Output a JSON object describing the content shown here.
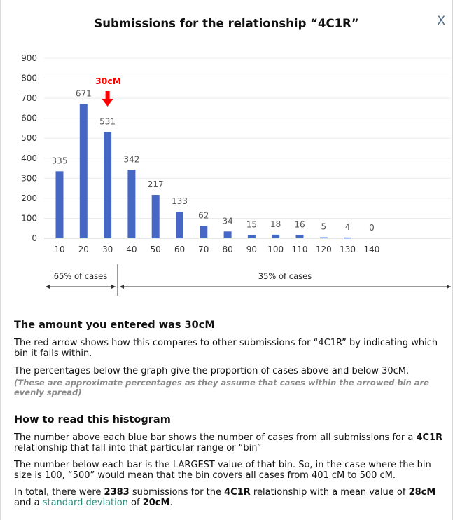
{
  "dialog": {
    "title": "Submissions for the relationship “4C1R”",
    "close_label": "X"
  },
  "chart_data": {
    "type": "bar",
    "categories": [
      "10",
      "20",
      "30",
      "40",
      "50",
      "60",
      "70",
      "80",
      "90",
      "100",
      "110",
      "120",
      "130",
      "140"
    ],
    "values": [
      335,
      671,
      531,
      342,
      217,
      133,
      62,
      34,
      15,
      18,
      16,
      5,
      4,
      0
    ],
    "yticks": [
      "0",
      "100",
      "200",
      "300",
      "400",
      "500",
      "600",
      "700",
      "800",
      "900"
    ],
    "ylim": [
      0,
      900
    ],
    "grid": true,
    "bar_color": "#4767c4",
    "marker": {
      "label": "30cM",
      "category": "30",
      "color": "#ff0000"
    },
    "split": {
      "left_label": "65% of cases",
      "right_label": "35% of cases"
    }
  },
  "entered": {
    "heading": "The amount you entered was 30cM",
    "p1": "The red arrow shows how this compares to other submissions for “4C1R” by indicating which bin it falls within.",
    "p2": "The percentages below the graph give the proportion of cases above and below 30cM.",
    "note": "(These are approximate percentages as they assume that cases within the arrowed bin are evenly spread)"
  },
  "howto": {
    "heading": "How to read this histogram",
    "p1_pre": "The number above each blue bar shows the number of cases from all submissions for a ",
    "p1_bold": "4C1R",
    "p1_post": " relationship that fall into that particular range or “bin”",
    "p2": "The number below each bar is the LARGEST value of that bin. So, in the case where the bin size is 100, “500” would mean that the bin covers all cases from 401 cM to 500 cM.",
    "p3_a": "In total, there were ",
    "p3_total": "2383",
    "p3_b": " submissions for the ",
    "p3_rel": "4C1R",
    "p3_c": " relationship with a mean value of ",
    "p3_mean": "28cM",
    "p3_d": " and a ",
    "p3_link": "standard deviation",
    "p3_e": " of ",
    "p3_sd": "20cM",
    "p3_f": "."
  }
}
